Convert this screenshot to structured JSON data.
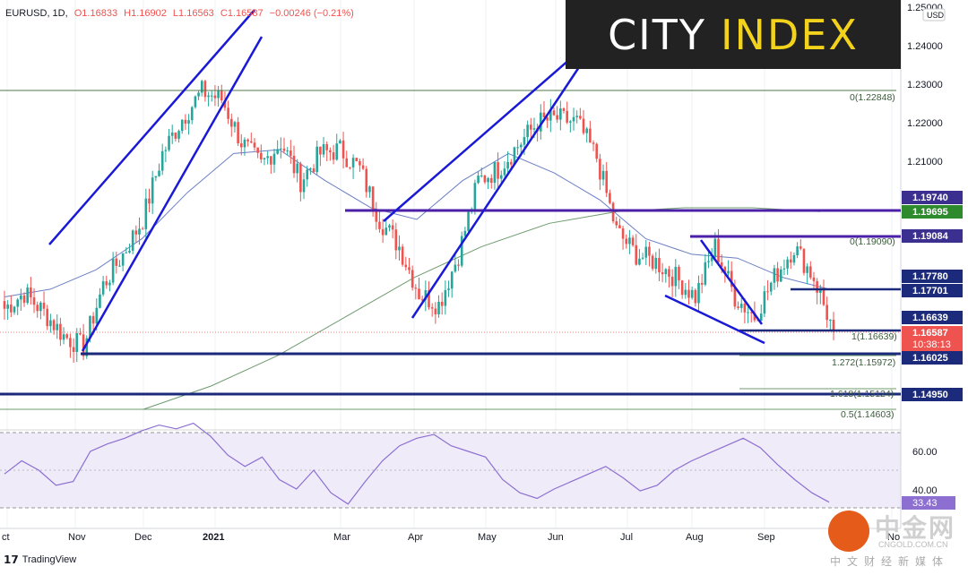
{
  "header": {
    "symbol": "EURUSD, 1D,",
    "open": "O1.16833",
    "high": "H1.16902",
    "low": "L1.16563",
    "close": "C1.16587",
    "change": "−0.00246 (−0.21%)"
  },
  "brand": {
    "logo_left": "CITY",
    "logo_right": "INDEX",
    "footer": "TradingView"
  },
  "watermark": {
    "main": "中金网",
    "url": "CNGOLD.COM.CN",
    "sub": "中文财经新媒体"
  },
  "colors": {
    "up": "#26a69a",
    "down": "#ef5350",
    "trend": "#1a1ad6",
    "purple": "#4b1fa8",
    "navy": "#1b2a7a",
    "ma_blue": "#6a7fc6",
    "ma_green": "#6e9b6e",
    "rsi": "#8c6fd1"
  },
  "chart_data": {
    "type": "line",
    "title": "EURUSD, 1D",
    "currency": "USD",
    "x_labels": [
      "ct",
      "Nov",
      "Dec",
      "2021",
      "Mar",
      "Apr",
      "May",
      "Jun",
      "Jul",
      "Aug",
      "Sep",
      "No"
    ],
    "y_ticks": [
      "1.25000",
      "1.24000",
      "1.23000",
      "1.22000",
      "1.21000"
    ],
    "ylim": [
      1.146,
      1.25
    ],
    "series": [
      {
        "x": [
          "Oct",
          "Oct",
          "Oct",
          "Nov",
          "Nov",
          "Nov",
          "Nov",
          "Dec",
          "Dec",
          "Dec",
          "Dec",
          "Jan",
          "Jan",
          "Jan",
          "Jan",
          "Feb",
          "Feb",
          "Feb",
          "Mar",
          "Mar",
          "Mar",
          "Mar",
          "Apr",
          "Apr",
          "Apr",
          "May",
          "May",
          "May",
          "May",
          "Jun",
          "Jun",
          "Jun",
          "Jun",
          "Jul",
          "Jul",
          "Jul",
          "Aug",
          "Aug",
          "Aug",
          "Aug",
          "Sep",
          "Sep",
          "Sep"
        ],
        "values": [
          1.172,
          1.176,
          1.171,
          1.165,
          1.162,
          1.178,
          1.186,
          1.195,
          1.212,
          1.221,
          1.228,
          1.226,
          1.215,
          1.209,
          1.215,
          1.205,
          1.212,
          1.213,
          1.208,
          1.195,
          1.188,
          1.176,
          1.173,
          1.186,
          1.205,
          1.208,
          1.214,
          1.22,
          1.221,
          1.22,
          1.211,
          1.192,
          1.186,
          1.184,
          1.18,
          1.175,
          1.188,
          1.175,
          1.17,
          1.18,
          1.188,
          1.18,
          1.166
        ]
      }
    ],
    "moving_averages": [
      {
        "color": "blue",
        "values": [
          1.175,
          1.177,
          1.182,
          1.19,
          1.202,
          1.212,
          1.213,
          1.205,
          1.198,
          1.195,
          1.205,
          1.212,
          1.207,
          1.2,
          1.19,
          1.186,
          1.185,
          1.18,
          1.177
        ]
      },
      {
        "color": "green",
        "values": [
          1.146,
          1.152,
          1.16,
          1.17,
          1.18,
          1.188,
          1.194,
          1.197,
          1.198,
          1.198,
          1.197
        ]
      }
    ],
    "horizontal_levels": [
      {
        "value": 1.22848,
        "label": "0(1.22848)"
      },
      {
        "value": 1.1974,
        "label": "1.19740"
      },
      {
        "value": 1.19695,
        "label": "1.19695"
      },
      {
        "value": 1.19084,
        "label": "1.19084"
      },
      {
        "value": 1.1909,
        "label": "0(1.19090)"
      },
      {
        "value": 1.1778,
        "label": "1.17780"
      },
      {
        "value": 1.17701,
        "label": "1.17701"
      },
      {
        "value": 1.16639,
        "label": "1.16639"
      },
      {
        "value": 1.16639,
        "label": "1(1.16639)"
      },
      {
        "value": 1.16025,
        "label": "1.16025"
      },
      {
        "value": 1.15972,
        "label": "1.272(1.15972)"
      },
      {
        "value": 1.15124,
        "label": "1.618(1.15124)"
      },
      {
        "value": 1.1495,
        "label": "1.14950"
      },
      {
        "value": 1.14603,
        "label": "0.5(1.14603)"
      }
    ],
    "current_price": {
      "value": "1.16587",
      "countdown": "10:38:13"
    },
    "rsi": {
      "ylim": [
        25,
        80
      ],
      "y_ticks": [
        "60.00",
        "40.00"
      ],
      "bands": [
        70,
        50,
        30
      ],
      "last_value": "33.43",
      "values": [
        48,
        55,
        50,
        42,
        44,
        60,
        64,
        67,
        71,
        74,
        72,
        75,
        68,
        58,
        52,
        57,
        45,
        40,
        50,
        38,
        32,
        44,
        55,
        63,
        67,
        69,
        63,
        60,
        57,
        45,
        38,
        35,
        40,
        44,
        48,
        52,
        46,
        39,
        42,
        50,
        55,
        59,
        63,
        67,
        62,
        53,
        45,
        38,
        33
      ]
    }
  }
}
